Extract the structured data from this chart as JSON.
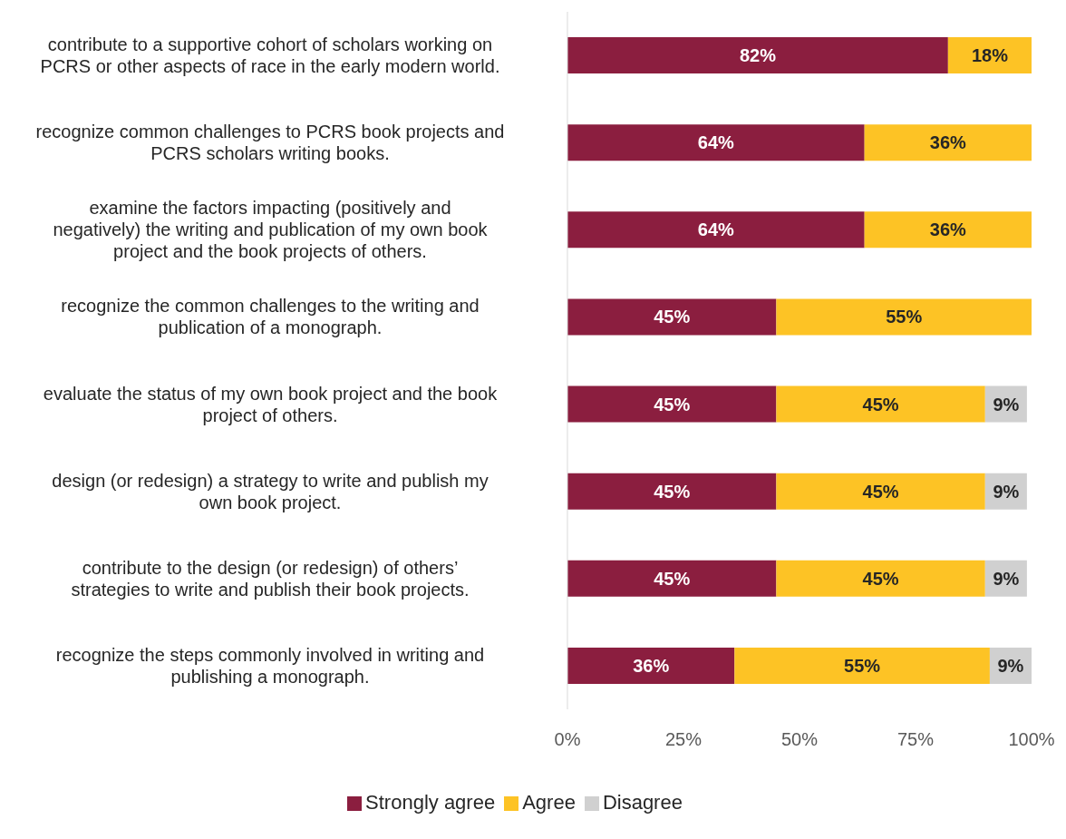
{
  "chart_data": {
    "type": "bar",
    "orientation": "horizontal",
    "stacked": true,
    "categories": [
      "contribute to a supportive cohort of scholars working on PCRS or other aspects of race in the early modern world.",
      "recognize common challenges to PCRS book projects and PCRS scholars writing books.",
      "examine the factors impacting (positively and negatively) the writing and publication of my own book project and the book projects of others.",
      "recognize the common challenges to the writing and publication of a monograph.",
      "evaluate the status of my own book project and the book project of others.",
      "design (or redesign) a strategy to write and publish my own book project.",
      "contribute to the design (or redesign) of others’ strategies to write and publish their book projects.",
      "recognize the steps commonly involved in writing and publishing a monograph."
    ],
    "series": [
      {
        "name": "Strongly agree",
        "color": "#8b1e3f",
        "values": [
          82,
          64,
          64,
          45,
          45,
          45,
          45,
          36
        ],
        "value_labels": [
          "82%",
          "64%",
          "64%",
          "45%",
          "45%",
          "45%",
          "45%",
          "36%"
        ]
      },
      {
        "name": "Agree",
        "color": "#fdc325",
        "values": [
          18,
          36,
          36,
          55,
          45,
          45,
          45,
          55
        ],
        "value_labels": [
          "18%",
          "36%",
          "36%",
          "55%",
          "45%",
          "45%",
          "45%",
          "55%"
        ]
      },
      {
        "name": "Disagree",
        "color": "#d0d0d0",
        "values": [
          null,
          null,
          null,
          null,
          9,
          9,
          9,
          9
        ],
        "value_labels": [
          null,
          null,
          null,
          null,
          "9%",
          "9%",
          "9%",
          "9%"
        ]
      }
    ],
    "xlim": [
      0,
      100
    ],
    "xticks": [
      {
        "value": 0,
        "label": "0%"
      },
      {
        "value": 25,
        "label": "25%"
      },
      {
        "value": 50,
        "label": "50%"
      },
      {
        "value": 75,
        "label": "75%"
      },
      {
        "value": 100,
        "label": "100%"
      }
    ],
    "grid": false,
    "legend": "bottom"
  }
}
